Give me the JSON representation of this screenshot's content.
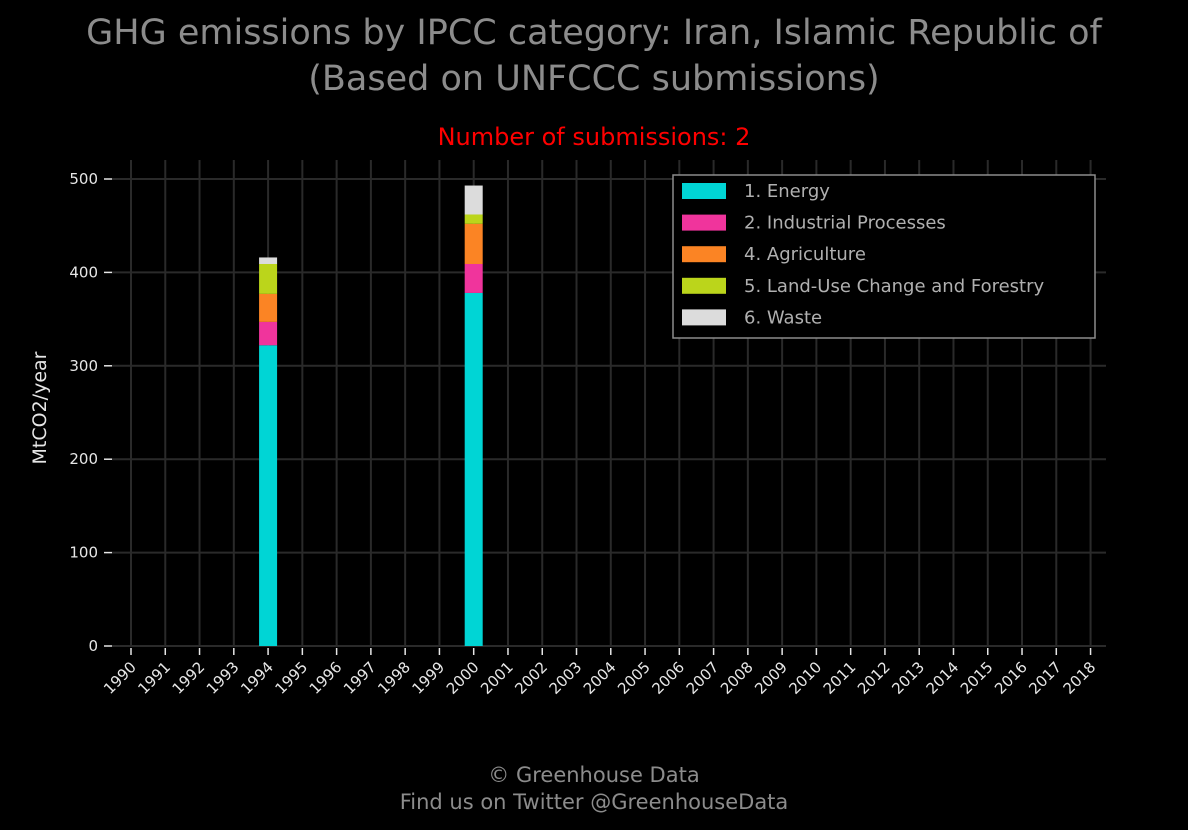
{
  "page": {
    "title_line1": "GHG emissions by IPCC category: Iran, Islamic Republic of",
    "title_line2": "(Based on UNFCCC submissions)",
    "subtitle": "Number of submissions: 2",
    "footer_line1": "© Greenhouse Data",
    "footer_line2": "Find us on Twitter @GreenhouseData"
  },
  "colors": {
    "background": "#000000",
    "grid": "#2a2a2a",
    "title": "#8c8c8c",
    "subtitle": "#ff0000",
    "ticks": "#e6e6e6",
    "legend_border": "#8c8c8c"
  },
  "chart_data": {
    "type": "bar",
    "stacked": true,
    "ylabel": "MtCO2/year",
    "xlabel": "",
    "ylim": [
      0,
      520
    ],
    "yticks": [
      0,
      100,
      200,
      300,
      400,
      500
    ],
    "categories": [
      "1990",
      "1991",
      "1992",
      "1993",
      "1994",
      "1995",
      "1996",
      "1997",
      "1998",
      "1999",
      "2000",
      "2001",
      "2002",
      "2003",
      "2004",
      "2005",
      "2006",
      "2007",
      "2008",
      "2009",
      "2010",
      "2011",
      "2012",
      "2013",
      "2014",
      "2015",
      "2016",
      "2017",
      "2018"
    ],
    "grid": true,
    "legend_position": "top-right",
    "series": [
      {
        "name": "1. Energy",
        "color": "#00d5d5",
        "values": [
          null,
          null,
          null,
          null,
          322,
          null,
          null,
          null,
          null,
          null,
          378,
          null,
          null,
          null,
          null,
          null,
          null,
          null,
          null,
          null,
          null,
          null,
          null,
          null,
          null,
          null,
          null,
          null,
          null
        ]
      },
      {
        "name": "2. Industrial Processes",
        "color": "#f0349c",
        "values": [
          null,
          null,
          null,
          null,
          25,
          null,
          null,
          null,
          null,
          null,
          31,
          null,
          null,
          null,
          null,
          null,
          null,
          null,
          null,
          null,
          null,
          null,
          null,
          null,
          null,
          null,
          null,
          null,
          null
        ]
      },
      {
        "name": "4. Agriculture",
        "color": "#fb8424",
        "values": [
          null,
          null,
          null,
          null,
          30,
          null,
          null,
          null,
          null,
          null,
          43,
          null,
          null,
          null,
          null,
          null,
          null,
          null,
          null,
          null,
          null,
          null,
          null,
          null,
          null,
          null,
          null,
          null,
          null
        ]
      },
      {
        "name": "5. Land-Use Change and Forestry",
        "color": "#bbd51b",
        "values": [
          null,
          null,
          null,
          null,
          32,
          null,
          null,
          null,
          null,
          null,
          10,
          null,
          null,
          null,
          null,
          null,
          null,
          null,
          null,
          null,
          null,
          null,
          null,
          null,
          null,
          null,
          null,
          null,
          null
        ]
      },
      {
        "name": "6. Waste",
        "color": "#dcdcdc",
        "values": [
          null,
          null,
          null,
          null,
          7,
          null,
          null,
          null,
          null,
          null,
          31,
          null,
          null,
          null,
          null,
          null,
          null,
          null,
          null,
          null,
          null,
          null,
          null,
          null,
          null,
          null,
          null,
          null,
          null
        ]
      }
    ]
  }
}
